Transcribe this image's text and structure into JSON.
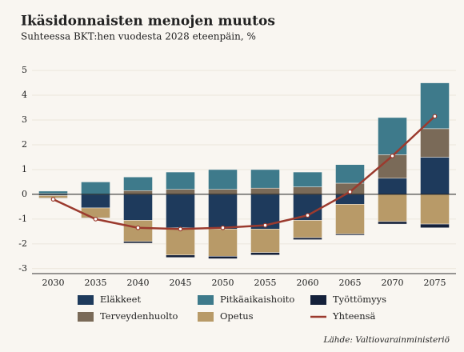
{
  "chart_data": {
    "type": "bar",
    "stacked": true,
    "title": "Ikäsidonnaisten menojen muutos",
    "subtitle": "Suhteessa BKT:hen vuodesta 2028 eteenpäin, %",
    "source": "Lähde: Valtiovarainministeriö",
    "categories": [
      "2030",
      "2035",
      "2040",
      "2045",
      "2050",
      "2055",
      "2060",
      "2065",
      "2070",
      "2075"
    ],
    "series": [
      {
        "name": "Eläkkeet",
        "color": "#1e3a5c",
        "values": [
          -0.05,
          -0.55,
          -1.05,
          -1.35,
          -1.4,
          -1.4,
          -1.05,
          -0.4,
          0.65,
          1.5
        ]
      },
      {
        "name": "Terveydenhuolto",
        "color": "#7a6a58",
        "values": [
          0.03,
          0.0,
          0.15,
          0.2,
          0.2,
          0.25,
          0.3,
          0.45,
          0.95,
          1.15
        ]
      },
      {
        "name": "Pitkäaikaishoito",
        "color": "#3e7a8b",
        "values": [
          0.1,
          0.5,
          0.55,
          0.7,
          0.8,
          0.75,
          0.6,
          0.75,
          1.5,
          1.85
        ]
      },
      {
        "name": "Opetus",
        "color": "#b89a68",
        "values": [
          -0.1,
          -0.4,
          -0.85,
          -1.1,
          -1.1,
          -0.95,
          -0.7,
          -1.2,
          -1.1,
          -1.2
        ]
      },
      {
        "name": "Työttömyys",
        "color": "#14203a",
        "values": [
          -0.02,
          -0.02,
          -0.07,
          -0.1,
          -0.1,
          -0.1,
          -0.08,
          -0.05,
          -0.1,
          -0.15
        ]
      },
      {
        "name": "Yhteensä",
        "type": "line",
        "color": "#9b3a2e",
        "values": [
          -0.2,
          -1.0,
          -1.35,
          -1.4,
          -1.35,
          -1.25,
          -0.85,
          0.1,
          1.55,
          3.15
        ]
      }
    ],
    "ylim": [
      -3.2,
      5.1
    ],
    "yticks": [
      -3,
      -2,
      -1,
      0,
      1,
      2,
      3,
      4,
      5
    ],
    "grid": true
  }
}
